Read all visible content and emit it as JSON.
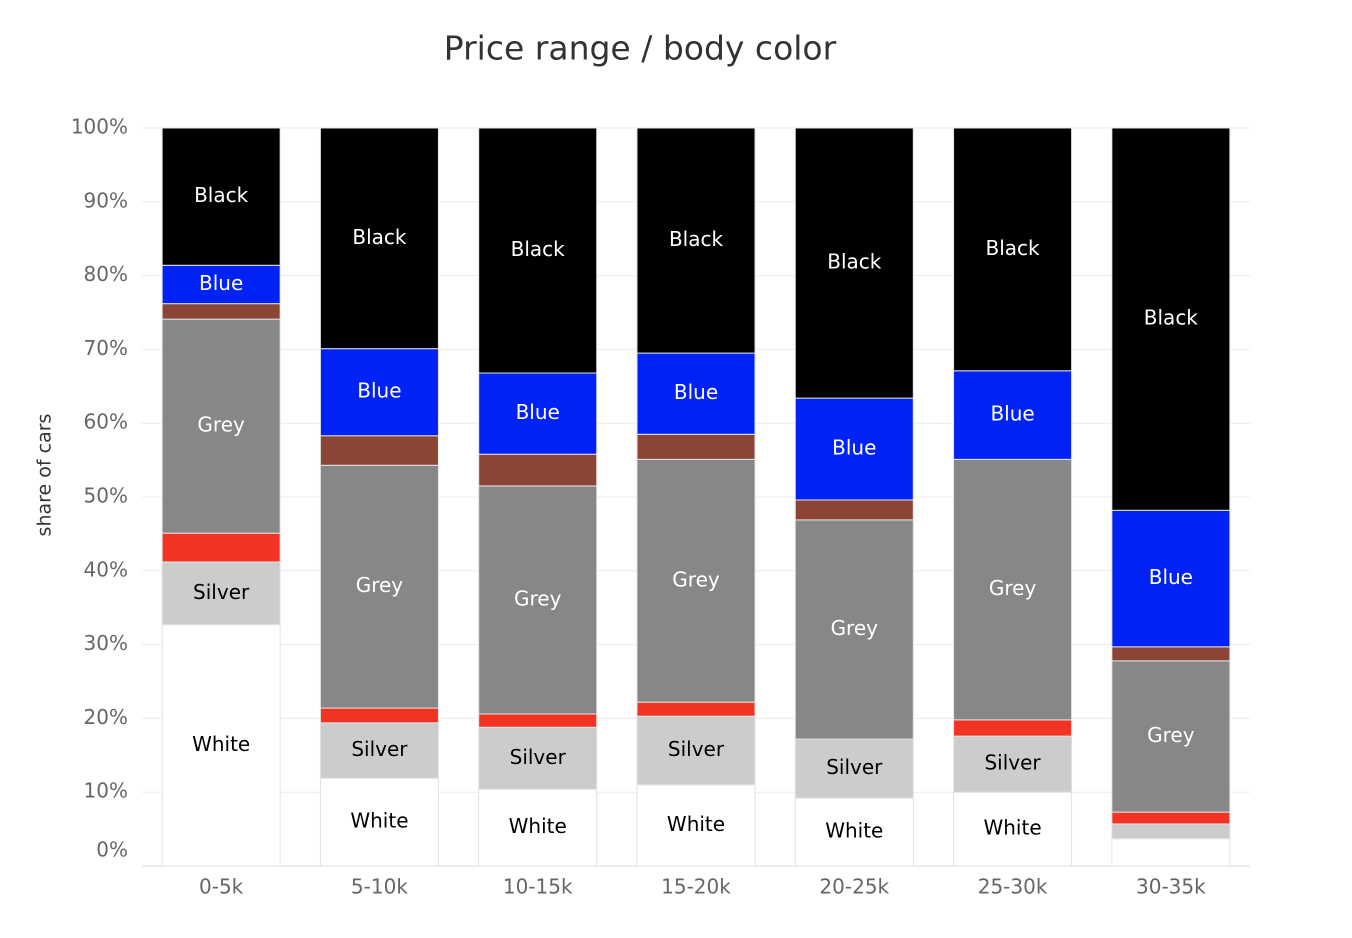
{
  "chart_data": {
    "type": "stacked_bar_100",
    "title": "Price range / body color",
    "y_label": "share of cars",
    "categories": [
      "0-5k",
      "5-10k",
      "10-15k",
      "15-20k",
      "20-25k",
      "25-30k",
      "30-35k"
    ],
    "series": [
      {
        "name": "White",
        "color": "#ffffff",
        "values": [
          32.7,
          11.9,
          10.4,
          11.0,
          9.2,
          10.0,
          3.7
        ]
      },
      {
        "name": "Silver",
        "color": "#cccccc",
        "values": [
          8.5,
          7.5,
          8.4,
          9.3,
          8.0,
          7.6,
          2.0
        ]
      },
      {
        "name": null,
        "color": "#f03323",
        "values": [
          3.9,
          2.0,
          1.8,
          1.9,
          0,
          2.2,
          1.6
        ]
      },
      {
        "name": "Grey",
        "color": "#878787",
        "values": [
          29.0,
          32.9,
          30.9,
          32.9,
          29.7,
          35.3,
          20.5
        ]
      },
      {
        "name": null,
        "color": "#8b4535",
        "values": [
          2.1,
          4.0,
          4.3,
          3.4,
          2.7,
          0,
          1.9
        ]
      },
      {
        "name": "Blue",
        "color": "#0022f5",
        "values": [
          5.2,
          11.8,
          11.0,
          11.0,
          13.8,
          12.0,
          18.5
        ]
      },
      {
        "name": "Black",
        "color": "#000000",
        "values": [
          18.6,
          29.9,
          33.2,
          30.5,
          36.6,
          32.9,
          51.8
        ]
      }
    ],
    "ylim": [
      0,
      100
    ],
    "yticks": [
      {
        "value": 0,
        "label": "0%"
      },
      {
        "value": 10,
        "label": "10%"
      },
      {
        "value": 20,
        "label": "20%"
      },
      {
        "value": 30,
        "label": "30%"
      },
      {
        "value": 40,
        "label": "40%"
      },
      {
        "value": 50,
        "label": "50%"
      },
      {
        "value": 60,
        "label": "60%"
      },
      {
        "value": 70,
        "label": "70%"
      },
      {
        "value": 80,
        "label": "80%"
      },
      {
        "value": 90,
        "label": "90%"
      },
      {
        "value": 100,
        "label": "100%"
      }
    ],
    "grid": true
  }
}
